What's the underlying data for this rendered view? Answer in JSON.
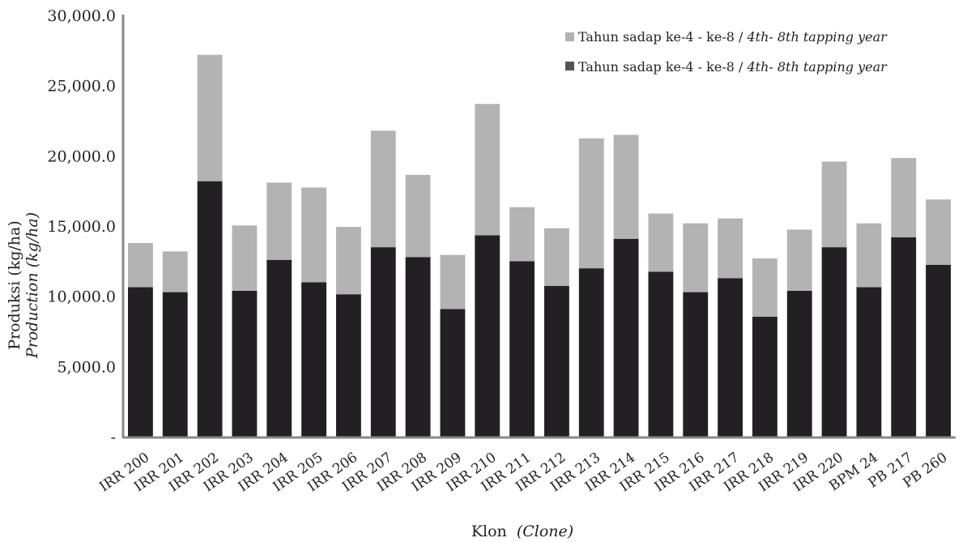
{
  "chart_data": {
    "type": "bar",
    "stacked": true,
    "categories": [
      "IRR 200",
      "IRR 201",
      "IRR 202",
      "IRR 203",
      "IRR 204",
      "IRR 205",
      "IRR 206",
      "IRR 207",
      "IRR 208",
      "IRR 209",
      "IRR 210",
      "IRR 211",
      "IRR 212",
      "IRR 213",
      "IRR 214",
      "IRR 215",
      "IRR 216",
      "IRR 217",
      "IRR 218",
      "IRR 219",
      "IRR 220",
      "BPM 24",
      "PB 217",
      "PB 260"
    ],
    "series": [
      {
        "name": "Tahun sadap ke-4 - ke-8 / 4th- 8th tapping year",
        "color": "#222022",
        "values": [
          10700,
          10350,
          18250,
          10450,
          12650,
          11050,
          10200,
          13550,
          12850,
          9150,
          14400,
          12550,
          10800,
          12050,
          14150,
          11800,
          10350,
          11350,
          8600,
          10450,
          13550,
          10700,
          14250,
          12300
        ]
      },
      {
        "name": "Tahun sadap ke-4 - ke-8 / 4th- 8th tapping year",
        "color": "#b3b3b3",
        "values": [
          3150,
          2900,
          9000,
          4650,
          5500,
          6750,
          4800,
          8300,
          5850,
          3850,
          9350,
          3850,
          4100,
          9250,
          7400,
          4150,
          4900,
          4250,
          4150,
          4350,
          6100,
          4550,
          5650,
          4650
        ]
      }
    ],
    "y_ticks": [
      "-",
      "5,000.0",
      "10,000.0",
      "15,000.0",
      "20,000.0",
      "25,000.0",
      "30,000.0"
    ],
    "ylim": [
      0,
      30000
    ],
    "ylabel": "Produksi (kg/ha)",
    "ylabel_italic": "Production (kg/ha)",
    "xlabel": "Klon",
    "xlabel_italic": "(Clone)",
    "legend": {
      "placement": "top-right",
      "entries": [
        {
          "color": "#b3b3b3",
          "text": "Tahun sadap ke-4 - ke-8 / ",
          "italic": "4th- 8th tapping year"
        },
        {
          "color": "#555555",
          "text": "Tahun sadap ke-4 - ke-8 / ",
          "italic": "4th- 8th tapping year"
        }
      ]
    },
    "grid": false
  }
}
